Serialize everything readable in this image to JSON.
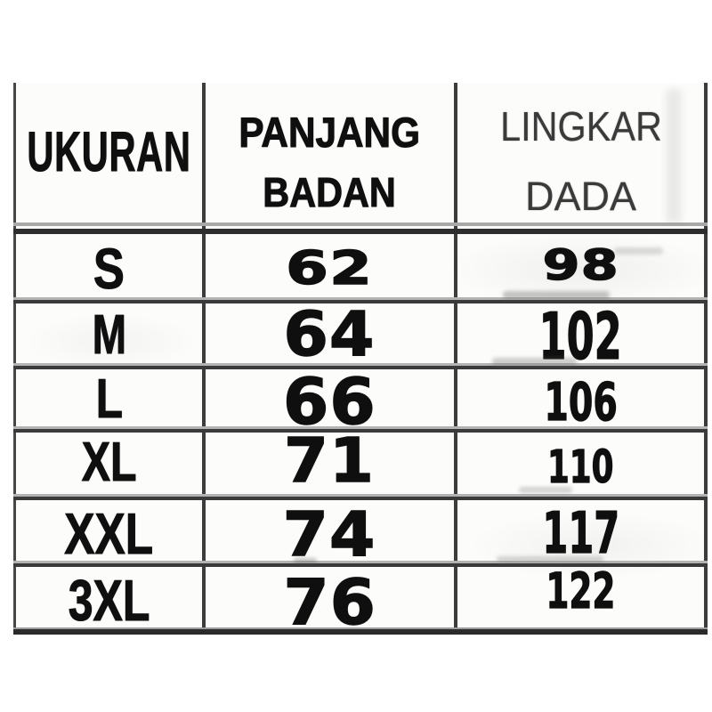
{
  "table": {
    "header": {
      "col1": "UKURAN",
      "col2_line1": "PANJANG",
      "col2_line2": "BADAN",
      "col3_line1": "LINGKAR",
      "col3_line2": "DADA"
    },
    "rows": [
      {
        "size": "S",
        "panjang_badan": "62",
        "lingkar_dada": "98"
      },
      {
        "size": "M",
        "panjang_badan": "64",
        "lingkar_dada": "102"
      },
      {
        "size": "L",
        "panjang_badan": "66",
        "lingkar_dada": "106"
      },
      {
        "size": "XL",
        "panjang_badan": "71",
        "lingkar_dada": "110"
      },
      {
        "size": "XXL",
        "panjang_badan": "74",
        "lingkar_dada": "117"
      },
      {
        "size": "3XL",
        "panjang_badan": "76",
        "lingkar_dada": "122"
      }
    ]
  },
  "colors": {
    "text": "#0f0f0f",
    "header_right_text": "#3a3a3a",
    "line": "#3a3a3a",
    "background": "#ffffff"
  },
  "chart_data": {
    "type": "table",
    "columns": [
      "UKURAN",
      "PANJANG BADAN",
      "LINGKAR DADA"
    ],
    "rows": [
      [
        "S",
        62,
        98
      ],
      [
        "M",
        64,
        102
      ],
      [
        "L",
        66,
        106
      ],
      [
        "XL",
        71,
        110
      ],
      [
        "XXL",
        74,
        117
      ],
      [
        "3XL",
        76,
        122
      ]
    ],
    "legend_position": "none",
    "grid": true
  }
}
